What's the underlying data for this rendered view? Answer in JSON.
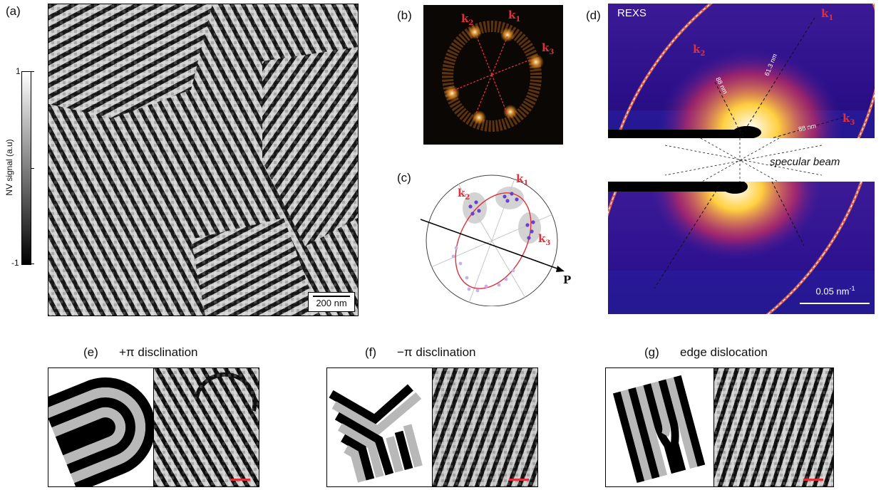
{
  "panels": {
    "a": {
      "label": "(a)",
      "scalebar": "200 nm",
      "colorbar": {
        "label": "NV signal (a.u)",
        "ticks": [
          "1",
          "-1"
        ]
      }
    },
    "b": {
      "label": "(b)",
      "k1": "k",
      "k2": "k",
      "k3": "k",
      "s1": "1",
      "s2": "2",
      "s3": "3"
    },
    "c": {
      "label": "(c)",
      "axis": "P"
    },
    "d": {
      "label": "(d)",
      "title": "REXS",
      "d1": "61.3 nm",
      "d2": "88 nm",
      "d3": "88 nm",
      "specular": "specular beam",
      "scalebar": "0.05 nm",
      "scalebar_exp": "-1"
    },
    "e": {
      "label": "(e)",
      "title": "+π disclination"
    },
    "f": {
      "label": "(f)",
      "title": "−π disclination"
    },
    "g": {
      "label": "(g)",
      "title": "edge dislocation"
    }
  },
  "colors": {
    "accent": "#e0303a",
    "fft_bg": "#0a0705",
    "rexs_bg": "#3a1690"
  }
}
